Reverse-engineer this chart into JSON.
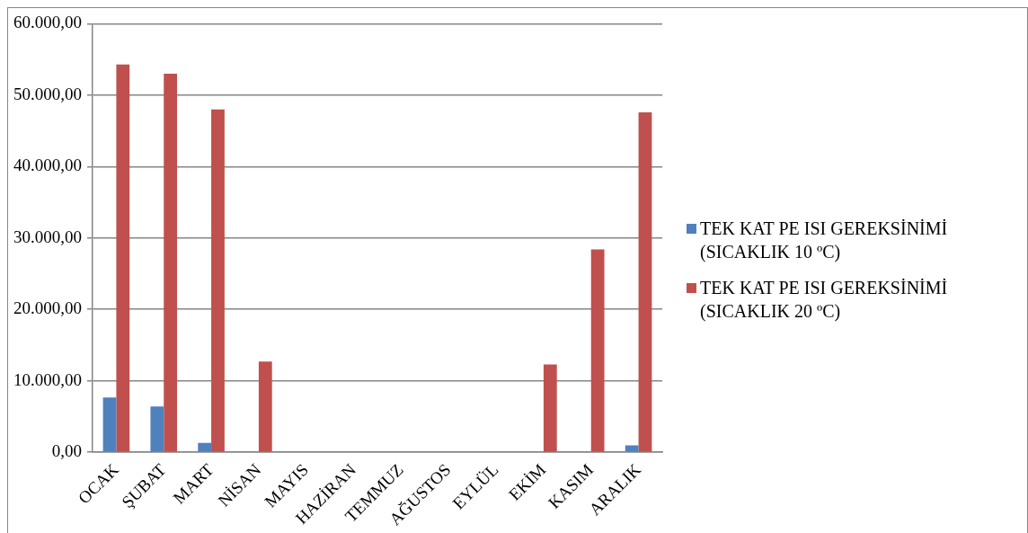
{
  "chart_data": {
    "type": "bar",
    "categories": [
      "OCAK",
      "ŞUBAT",
      "MART",
      "NİSAN",
      "MAYIS",
      "HAZİRAN",
      "TEMMUZ",
      "AĞUSTOS",
      "EYLÜL",
      "EKİM",
      "KASIM",
      "ARALIK"
    ],
    "series": [
      {
        "name": "TEK KAT PE ISI GEREKSİNİMİ (SICAKLIK 10 ºC)",
        "color": "#4f81bd",
        "values": [
          7660,
          6400,
          1320,
          0,
          0,
          0,
          0,
          0,
          0,
          0,
          0,
          960
        ]
      },
      {
        "name": "TEK KAT PE ISI GEREKSİNİMİ (SICAKLIK 20 ºC)",
        "color": "#c0504d",
        "values": [
          54300,
          53000,
          48000,
          12700,
          0,
          0,
          0,
          0,
          0,
          12300,
          28400,
          47600
        ]
      }
    ],
    "ylim": [
      0,
      60000
    ],
    "yticks": [
      {
        "value": 0,
        "label": "0,00"
      },
      {
        "value": 10000,
        "label": "10.000,00"
      },
      {
        "value": 20000,
        "label": "20.000,00"
      },
      {
        "value": 30000,
        "label": "30.000,00"
      },
      {
        "value": 40000,
        "label": "40.000,00"
      },
      {
        "value": 50000,
        "label": "50.000,00"
      },
      {
        "value": 60000,
        "label": "60.000,00"
      }
    ],
    "grid": "y",
    "legend": "right"
  }
}
